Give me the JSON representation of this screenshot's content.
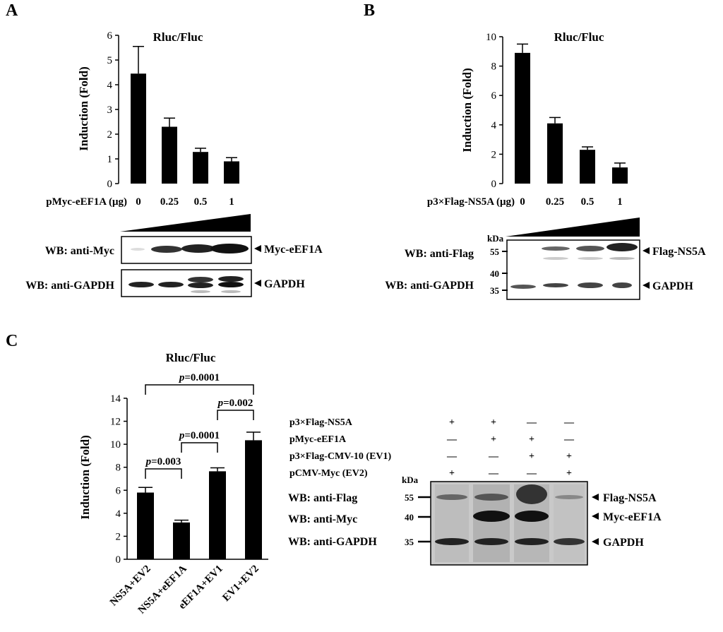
{
  "panels": {
    "A": {
      "label": "A",
      "chart_data": {
        "type": "bar",
        "title": "Rluc/Fluc",
        "ylabel": "Induction (Fold)",
        "xlabel": "pMyc-eEF1A (μg)",
        "categories": [
          "0",
          "0.25",
          "0.5",
          "1"
        ],
        "values": [
          4.45,
          2.3,
          1.28,
          0.9
        ],
        "errors": [
          1.1,
          0.35,
          0.15,
          0.15
        ],
        "ylim": [
          0,
          6
        ],
        "yticks": [
          "0",
          "1",
          "2",
          "3",
          "4",
          "5",
          "6"
        ]
      },
      "blot": {
        "rows": [
          {
            "wb": "WB: anti-Myc",
            "band": "Myc-eEF1A"
          },
          {
            "wb": "WB: anti-GAPDH",
            "band": "GAPDH"
          }
        ]
      }
    },
    "B": {
      "label": "B",
      "chart_data": {
        "type": "bar",
        "title": "Rluc/Fluc",
        "ylabel": "Induction (Fold)",
        "xlabel": "p3×Flag-NS5A (μg)",
        "categories": [
          "0",
          "0.25",
          "0.5",
          "1"
        ],
        "values": [
          8.9,
          4.1,
          2.3,
          1.1
        ],
        "errors": [
          0.6,
          0.4,
          0.2,
          0.3
        ],
        "ylim": [
          0,
          10
        ],
        "yticks": [
          "0",
          "2",
          "4",
          "6",
          "8",
          "10"
        ]
      },
      "blot": {
        "kda": "kDa",
        "markers": [
          "55",
          "40",
          "35"
        ],
        "rows": [
          {
            "wb": "WB: anti-Flag",
            "band": "Flag-NS5A"
          },
          {
            "wb": "WB: anti-GAPDH",
            "band": "GAPDH"
          }
        ]
      }
    },
    "C": {
      "label": "C",
      "chart_data": {
        "type": "bar",
        "title": "Rluc/Fluc",
        "ylabel": "Induction (Fold)",
        "categories": [
          "NS5A+EV2",
          "NS5A+eEF1A",
          "eEF1A+EV1",
          "EV1+EV2"
        ],
        "values": [
          5.8,
          3.2,
          7.65,
          10.35
        ],
        "errors": [
          0.45,
          0.2,
          0.3,
          0.7
        ],
        "ylim": [
          0,
          14
        ],
        "yticks": [
          "0",
          "2",
          "4",
          "6",
          "8",
          "10",
          "12",
          "14"
        ],
        "comparisons": [
          {
            "pair": [
              1,
              4
            ],
            "p": "=0.0001"
          },
          {
            "pair": [
              3,
              4
            ],
            "p": "=0.002"
          },
          {
            "pair": [
              2,
              3
            ],
            "p": "=0.0001"
          },
          {
            "pair": [
              1,
              2
            ],
            "p": "=0.003"
          }
        ]
      },
      "blot": {
        "kda": "kDa",
        "markers": [
          "55",
          "40",
          "35"
        ],
        "conditions": [
          {
            "name": "p3×Flag-NS5A",
            "symbols": [
              "+",
              "+",
              "—",
              "—"
            ]
          },
          {
            "name": "pMyc-eEF1A",
            "symbols": [
              "—",
              "+",
              "+",
              "—"
            ]
          },
          {
            "name": "p3×Flag-CMV-10 (EV1)",
            "symbols": [
              "—",
              "—",
              "+",
              "+"
            ]
          },
          {
            "name": "pCMV-Myc (EV2)",
            "symbols": [
              "+",
              "—",
              "—",
              "+"
            ]
          }
        ],
        "rows": [
          {
            "wb": "WB: anti-Flag",
            "band": "Flag-NS5A"
          },
          {
            "wb": "WB: anti-Myc",
            "band": "Myc-eEF1A"
          },
          {
            "wb": "WB: anti-GAPDH",
            "band": "GAPDH"
          }
        ]
      }
    }
  },
  "p_prefix": "p"
}
